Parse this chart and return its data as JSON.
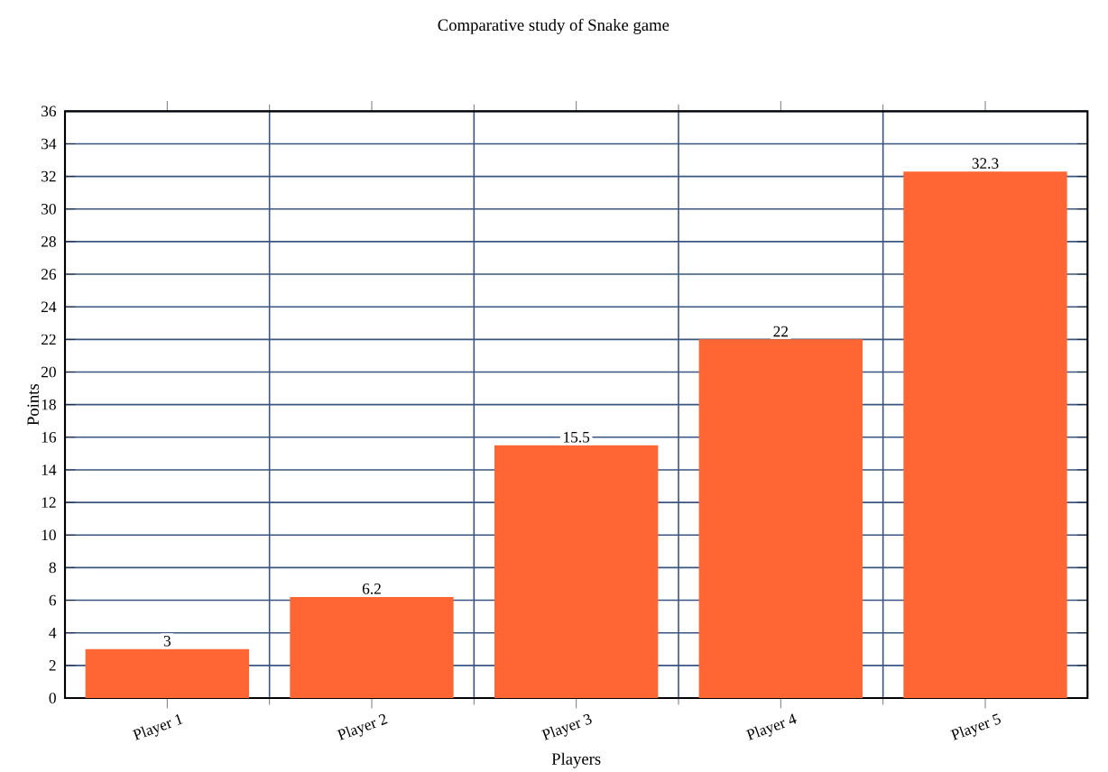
{
  "chart_data": {
    "type": "bar",
    "title": "Comparative study of Snake game",
    "xlabel": "Players",
    "ylabel": "Points",
    "categories": [
      "Player 1",
      "Player 2",
      "Player 3",
      "Player 4",
      "Player 5"
    ],
    "values": [
      3,
      6.2,
      15.5,
      22,
      32.3
    ],
    "color": "#ff6633",
    "ylim": [
      0,
      36
    ],
    "yticks": [
      0,
      2,
      4,
      6,
      8,
      10,
      12,
      14,
      16,
      18,
      20,
      22,
      24,
      26,
      28,
      30,
      32,
      34,
      36
    ],
    "grid": true,
    "data_labels": true
  }
}
